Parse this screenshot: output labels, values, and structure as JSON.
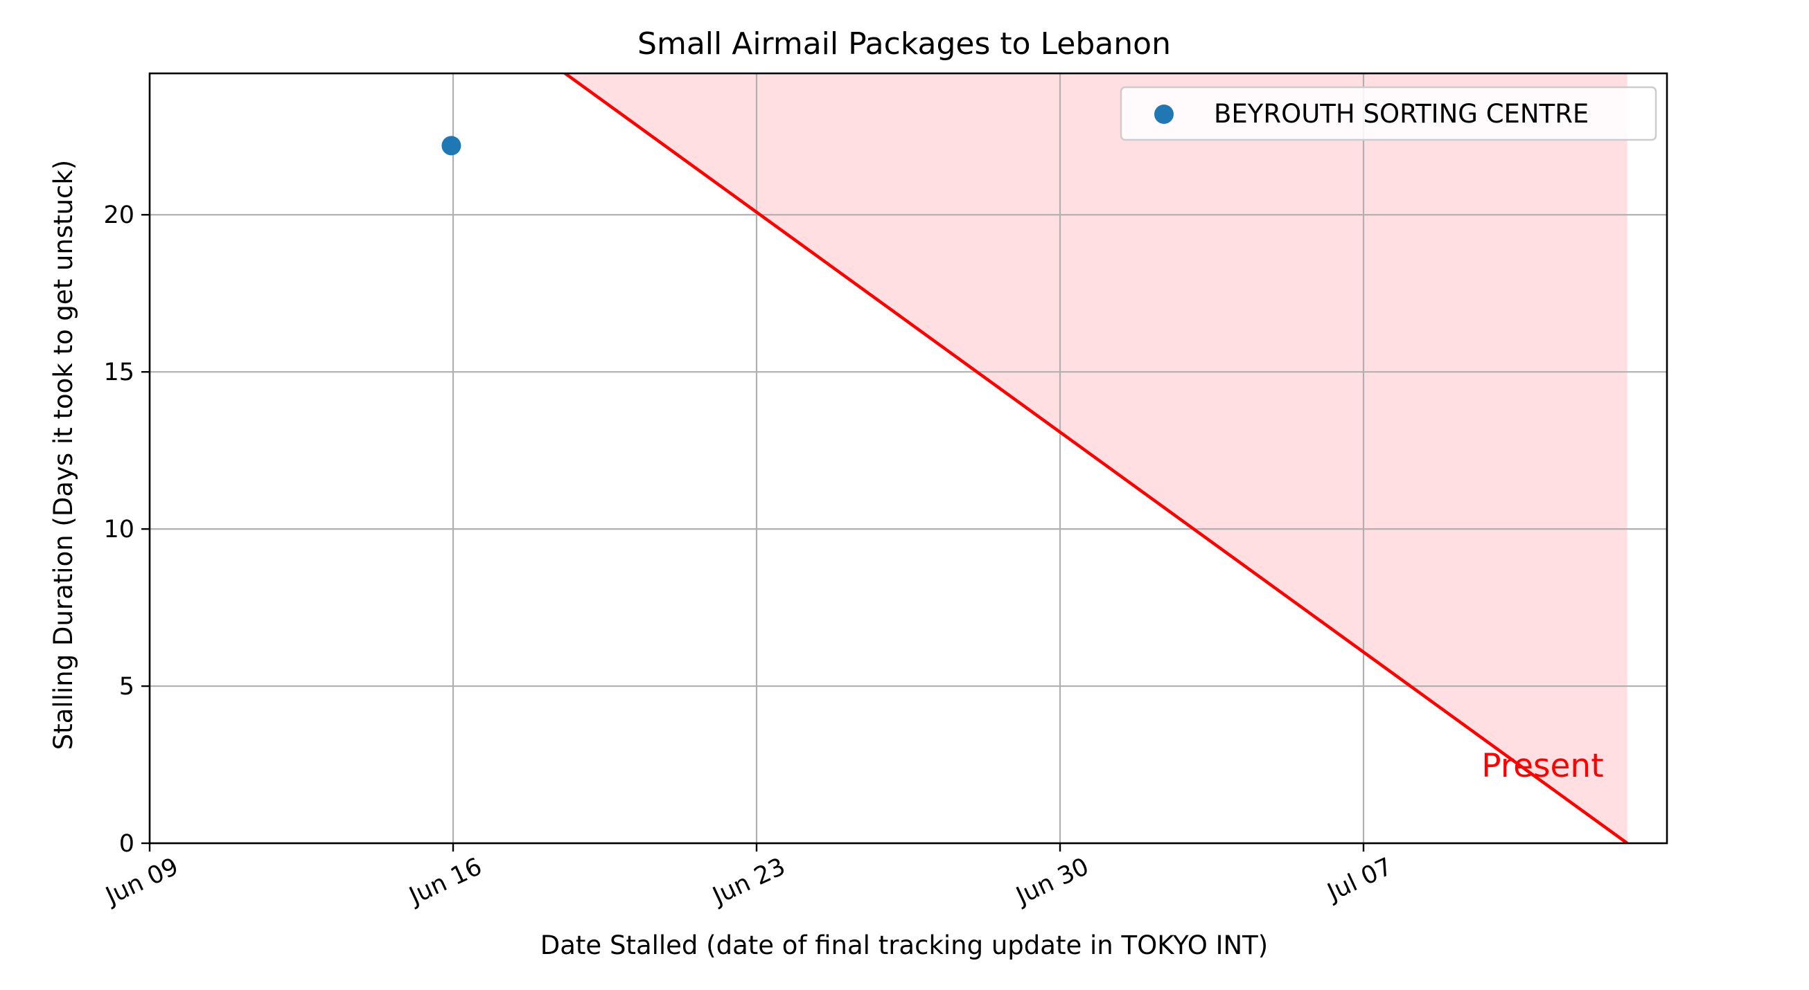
{
  "chart_data": {
    "type": "scatter",
    "title": "Small Airmail Packages to Lebanon",
    "xlabel": "Date Stalled (date of final tracking update in TOKYO INT)",
    "ylabel": "Stalling Duration (Days it took to get unstuck)",
    "x_ticks": [
      "2024-06-09",
      "2024-06-16",
      "2024-06-23",
      "2024-06-30",
      "2024-07-07"
    ],
    "x_tick_labels": [
      "Jun 09",
      "Jun 16",
      "Jun 23",
      "Jun 30",
      "Jul 07"
    ],
    "y_ticks": [
      0,
      5,
      10,
      15,
      20
    ],
    "xlim": [
      "2024-06-09",
      "2024-07-14T00:00"
    ],
    "ylim": [
      0,
      24.5
    ],
    "grid": true,
    "legend_position": "top-right",
    "series": [
      {
        "name": "BEYROUTH SORTING CENTRE",
        "color": "#1f77b4",
        "points": [
          {
            "x": "2024-06-15T23:00",
            "y": 22.2
          }
        ]
      }
    ],
    "present_line": {
      "label": "Present",
      "color": "#ff0000",
      "fill_color": "#ffdfe2",
      "present_date": "2024-07-13T02:00",
      "shade_end_date": "2024-07-13T02:00"
    }
  }
}
